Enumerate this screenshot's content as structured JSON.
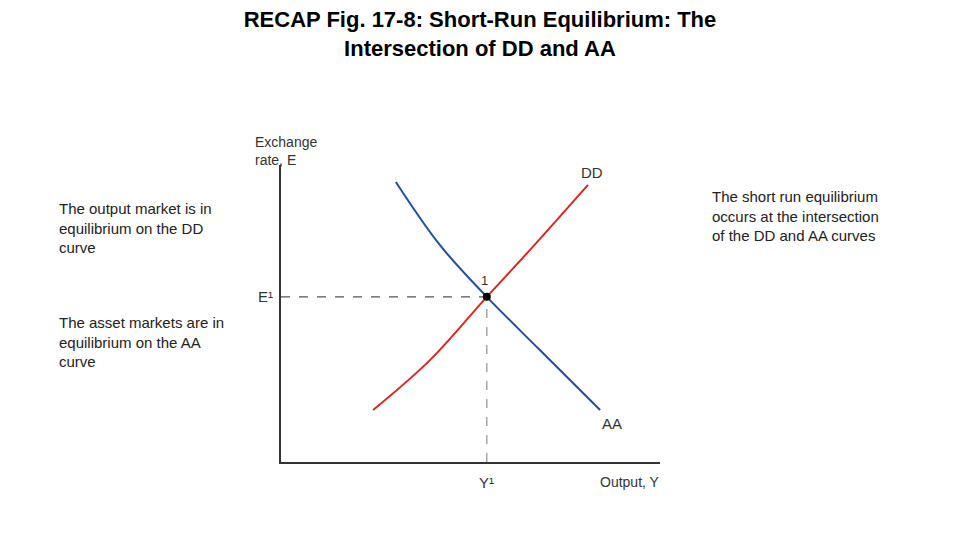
{
  "chart_data": {
    "type": "line",
    "title": [
      "RECAP Fig. 17-8: Short-Run Equilibrium: The",
      "Intersection of DD and AA"
    ],
    "x_label": "Output, Y",
    "y_label": [
      "Exchange",
      "rate, E"
    ],
    "xlim": [
      0,
      10
    ],
    "ylim": [
      0,
      10
    ],
    "tick_labels": false,
    "grid": false,
    "series": [
      {
        "name": "DD",
        "color": "#e0261f",
        "x": [
          2.43,
          3.93,
          5.43,
          6.57,
          8.1
        ],
        "values": [
          1.75,
          3.43,
          5.56,
          7.14,
          9.33
        ]
      },
      {
        "name": "AA",
        "color": "#1f4f9e",
        "x": [
          3.03,
          4.19,
          5.43,
          6.83,
          8.42
        ],
        "values": [
          9.43,
          7.31,
          5.56,
          3.77,
          1.75
        ]
      }
    ],
    "equilibrium": {
      "label": "1",
      "x": 5.43,
      "y": 5.56,
      "x_label": "Y¹",
      "y_label": "E¹"
    },
    "annotations": [
      [
        "The output market is in",
        "equilibrium on the DD",
        "curve"
      ],
      [
        "The asset markets are in",
        "equilibrium on the AA",
        "curve"
      ],
      [
        "The short run equilibrium",
        "occurs at the intersection",
        "of the DD and AA curves"
      ]
    ]
  }
}
